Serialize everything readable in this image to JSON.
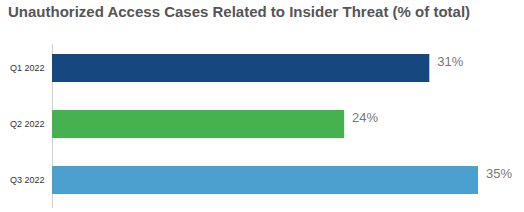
{
  "chart_data": {
    "type": "bar",
    "orientation": "horizontal",
    "title": "Unauthorized Access Cases Related to Insider Threat (% of total)",
    "categories": [
      "Q1 2022",
      "Q2 2022",
      "Q3 2022"
    ],
    "values": [
      31,
      24,
      35
    ],
    "value_labels": [
      "31%",
      "24%",
      "35%"
    ],
    "colors": [
      "#16477f",
      "#46b24f",
      "#4ca0cf"
    ],
    "xlim": [
      0,
      35
    ],
    "data_labels": true,
    "tick_labels": "y",
    "grid": false
  }
}
